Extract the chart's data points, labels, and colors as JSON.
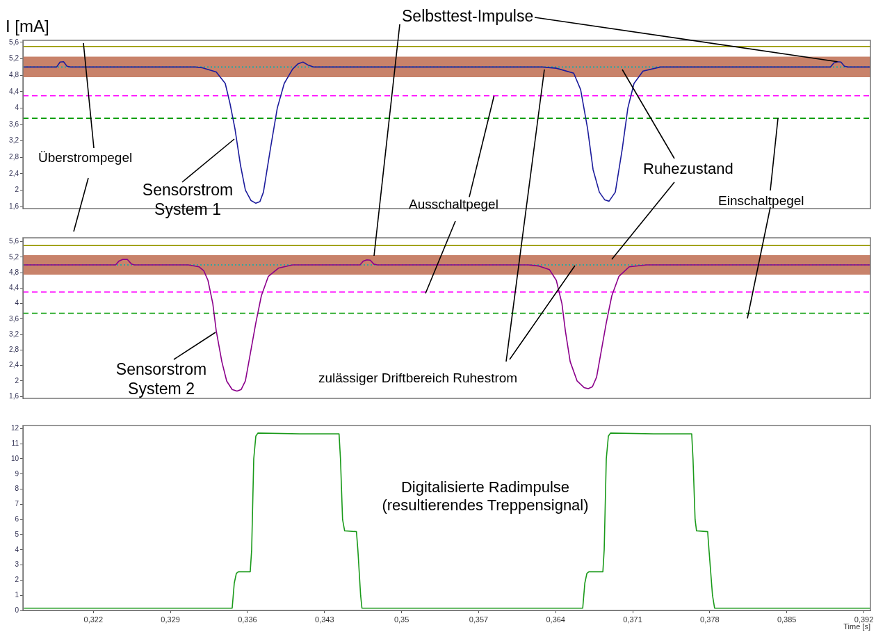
{
  "chart_data": [
    {
      "type": "line",
      "ylabel": "I [mA]",
      "annotations": [
        {
          "text": "Selbsttest-Impulse",
          "x": 0.3896,
          "y": 5.13
        },
        {
          "text": "Ausschaltpegel",
          "x": 0.3584,
          "y": 4.3
        },
        {
          "text": "Einschaltpegel",
          "x": 0.3842,
          "y": 3.75
        }
      ],
      "series": [
        {
          "name": "Sensorstrom System 1",
          "color": "#1c1c9c",
          "x": [
            0.31569,
            0.31866,
            0.31897,
            0.31929,
            0.3196,
            0.31992,
            0.33127,
            0.3319,
            0.33316,
            0.33398,
            0.33442,
            0.33486,
            0.33537,
            0.33581,
            0.33631,
            0.33676,
            0.33713,
            0.33745,
            0.33808,
            0.33871,
            0.33934,
            0.3401,
            0.3406,
            0.34104,
            0.34149,
            0.34199,
            0.3628,
            0.36406,
            0.36564,
            0.36627,
            0.3669,
            0.3674,
            0.36797,
            0.36847,
            0.36885,
            0.36942,
            0.37005,
            0.37056,
            0.37112,
            0.37194,
            0.37352,
            0.38897,
            0.38928,
            0.3896,
            0.38992,
            0.39024,
            0.39055,
            0.39256
          ],
          "values": [
            5.0,
            5.0,
            5.12,
            5.13,
            5.02,
            5.0,
            5.0,
            4.98,
            4.88,
            4.6,
            4.1,
            3.5,
            2.6,
            2.0,
            1.75,
            1.68,
            1.72,
            1.95,
            3.0,
            4.0,
            4.6,
            4.95,
            5.08,
            5.12,
            5.05,
            5.0,
            5.0,
            4.97,
            4.85,
            4.45,
            3.5,
            2.5,
            1.95,
            1.76,
            1.73,
            1.95,
            3.0,
            4.0,
            4.6,
            4.9,
            5.0,
            5.0,
            5.1,
            5.13,
            5.12,
            5.02,
            5.0,
            5.0
          ]
        }
      ],
      "ref_lines": [
        {
          "axis": "y",
          "value": 5.5,
          "label": "Überstrompegel",
          "color": "#9a9a00",
          "line_style": "solid"
        },
        {
          "axis": "y",
          "value": 5.0,
          "label": "Ruhezustand",
          "color": "#00b0b0",
          "line_style": "dotted"
        },
        {
          "axis": "y",
          "value": 4.3,
          "color": "#ff00ff",
          "line_style": "dashed"
        },
        {
          "axis": "y",
          "value": 3.75,
          "color": "#009a00",
          "line_style": "dashed"
        }
      ],
      "bands": [
        {
          "axis": "y",
          "from": 4.75,
          "to": 5.25,
          "color": "#c8826a"
        }
      ],
      "xlim": [
        0.3156,
        0.3926
      ],
      "ylim": [
        1.55,
        5.65
      ],
      "yticks": [
        {
          "value": 1.6,
          "label": "1,6"
        },
        2,
        {
          "value": 2.4,
          "label": "2,4"
        },
        {
          "value": 2.8,
          "label": "2,8"
        },
        {
          "value": 3.2,
          "label": "3,2"
        },
        {
          "value": 3.6,
          "label": "3,6"
        },
        4,
        {
          "value": 4.4,
          "label": "4,4"
        },
        {
          "value": 4.8,
          "label": "4,8"
        },
        {
          "value": 5.2,
          "label": "5,2"
        },
        {
          "value": 5.6,
          "label": "5,6"
        }
      ],
      "tick_labels": "y"
    },
    {
      "type": "line",
      "series": [
        {
          "name": "Sensorstrom System 2",
          "color": "#8b008b",
          "x": [
            0.31569,
            0.32402,
            0.32433,
            0.32465,
            0.32509,
            0.32547,
            0.32572,
            0.33064,
            0.33159,
            0.33203,
            0.33241,
            0.33285,
            0.33316,
            0.33367,
            0.33411,
            0.33461,
            0.33505,
            0.33543,
            0.33581,
            0.33619,
            0.33676,
            0.33726,
            0.33789,
            0.33884,
            0.3401,
            0.34622,
            0.34653,
            0.34685,
            0.34716,
            0.34748,
            0.34779,
            0.36154,
            0.36249,
            0.36343,
            0.36406,
            0.36457,
            0.36488,
            0.36532,
            0.36595,
            0.36658,
            0.36696,
            0.36734,
            0.36772,
            0.36816,
            0.3686,
            0.3691,
            0.36974,
            0.37068,
            0.37226,
            0.39256
          ],
          "values": [
            5.0,
            5.0,
            5.1,
            5.14,
            5.14,
            5.02,
            5.0,
            5.0,
            4.95,
            4.85,
            4.6,
            4.0,
            3.3,
            2.5,
            2.0,
            1.78,
            1.74,
            1.78,
            2.0,
            2.6,
            3.5,
            4.2,
            4.7,
            4.92,
            5.0,
            5.0,
            5.1,
            5.13,
            5.12,
            5.02,
            5.0,
            5.0,
            4.97,
            4.88,
            4.6,
            4.0,
            3.3,
            2.5,
            2.0,
            1.83,
            1.8,
            1.85,
            2.1,
            2.8,
            3.5,
            4.2,
            4.7,
            4.95,
            5.0,
            5.0
          ]
        }
      ],
      "ref_lines": [
        {
          "axis": "y",
          "value": 5.5,
          "color": "#9a9a00",
          "line_style": "solid"
        },
        {
          "axis": "y",
          "value": 5.0,
          "color": "#00b0b0",
          "line_style": "dotted"
        },
        {
          "axis": "y",
          "value": 4.3,
          "color": "#ff00ff",
          "line_style": "dashed"
        },
        {
          "axis": "y",
          "value": 3.75,
          "color": "#009a00",
          "line_style": "dashed"
        }
      ],
      "bands": [
        {
          "axis": "y",
          "from": 4.75,
          "to": 5.25,
          "color": "#c8826a",
          "label": "zulässiger Driftbereich Ruhestrom"
        }
      ],
      "xlim": [
        0.3156,
        0.3926
      ],
      "ylim": [
        1.55,
        5.7
      ],
      "yticks": [
        {
          "value": 1.6,
          "label": "1,6"
        },
        2,
        {
          "value": 2.4,
          "label": "2,4"
        },
        {
          "value": 2.8,
          "label": "2,8"
        },
        {
          "value": 3.2,
          "label": "3,2"
        },
        {
          "value": 3.6,
          "label": "3,6"
        },
        4,
        {
          "value": 4.4,
          "label": "4,4"
        },
        {
          "value": 4.8,
          "label": "4,8"
        },
        {
          "value": 5.2,
          "label": "5,2"
        },
        {
          "value": 5.6,
          "label": "5,6"
        }
      ],
      "tick_labels": "y"
    },
    {
      "type": "line",
      "xlabel": "Time [s]",
      "series": [
        {
          "name": "Digitalisierte Radimpulse (resultierendes Treppensignal)",
          "color": "#1a9a1a",
          "x": [
            0.31569,
            0.33461,
            0.3348,
            0.33499,
            0.33518,
            0.33625,
            0.33638,
            0.33657,
            0.33676,
            0.33695,
            0.34073,
            0.34432,
            0.34445,
            0.34464,
            0.34483,
            0.3459,
            0.34603,
            0.34628,
            0.3464,
            0.36646,
            0.36665,
            0.36684,
            0.36702,
            0.36829,
            0.36841,
            0.3686,
            0.36879,
            0.36898,
            0.37289,
            0.37636,
            0.37648,
            0.37667,
            0.3768,
            0.37781,
            0.37793,
            0.37825,
            0.37844,
            0.39256
          ],
          "values": [
            0.15,
            0.15,
            1.8,
            2.45,
            2.55,
            2.55,
            4,
            10,
            11.5,
            11.7,
            11.65,
            11.65,
            10,
            6,
            5.25,
            5.2,
            4,
            1,
            0.15,
            0.15,
            1.8,
            2.45,
            2.55,
            2.55,
            4,
            10,
            11.5,
            11.7,
            11.65,
            11.65,
            10,
            6,
            5.25,
            5.2,
            4,
            1,
            0.15,
            0.15
          ]
        }
      ],
      "xlim": [
        0.3156,
        0.3926
      ],
      "xticks": [
        {
          "value": 0.322,
          "label": "0,322"
        },
        {
          "value": 0.329,
          "label": "0,329"
        },
        {
          "value": 0.336,
          "label": "0,336"
        },
        {
          "value": 0.343,
          "label": "0,343"
        },
        {
          "value": 0.35,
          "label": "0,35"
        },
        {
          "value": 0.357,
          "label": "0,357"
        },
        {
          "value": 0.364,
          "label": "0,364"
        },
        {
          "value": 0.371,
          "label": "0,371"
        },
        {
          "value": 0.378,
          "label": "0,378"
        },
        {
          "value": 0.385,
          "label": "0,385"
        },
        {
          "value": 0.392,
          "label": "0,392"
        }
      ],
      "ylim": [
        0,
        12.2
      ],
      "yticks": [
        0,
        1,
        2,
        3,
        4,
        5,
        6,
        7,
        8,
        9,
        10,
        11,
        12
      ]
    }
  ]
}
